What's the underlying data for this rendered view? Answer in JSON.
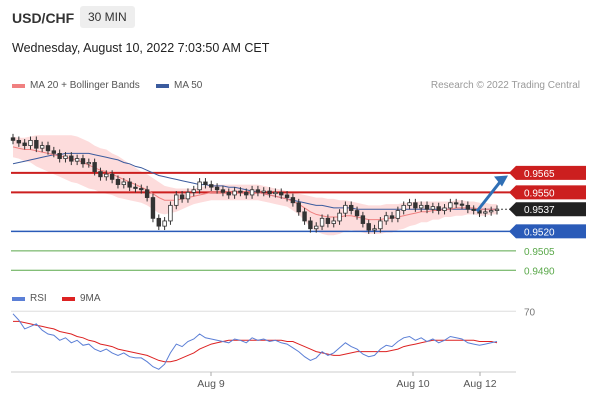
{
  "header": {
    "symbol": "USD/CHF",
    "timeframe": "30 MIN"
  },
  "date_text": "Wednesday, August 10, 2022 7:03:50 AM CET",
  "legend": {
    "ma20_label": "MA 20 + Bollinger Bands",
    "ma50_label": "MA 50",
    "credit": "Research © 2022 Trading Central",
    "rsi_label": "RSI",
    "ma9_label": "9MA"
  },
  "colors": {
    "resistance": "#cc1f1f",
    "support": "#2a5bb8",
    "target": "#5aa84a",
    "ma20": "#f08080",
    "ma50": "#3b5b9e",
    "band": "#fcd0d0",
    "up": "#333333",
    "down": "#333333",
    "arrow": "#2f6fb5",
    "rsi": "#5b7fd6",
    "ma9": "#dd2222"
  },
  "chart_data": [
    {
      "type": "candlestick",
      "ylim": [
        0.9481,
        0.9598
      ],
      "levels": [
        {
          "value": 0.9565,
          "label": "0.9565",
          "kind": "resistance"
        },
        {
          "value": 0.955,
          "label": "0.9550",
          "kind": "resistance"
        },
        {
          "value": 0.9537,
          "label": "0.9537",
          "kind": "current"
        },
        {
          "value": 0.952,
          "label": "0.9520",
          "kind": "support"
        },
        {
          "value": 0.9505,
          "label": "0.9505",
          "kind": "target"
        },
        {
          "value": 0.949,
          "label": "0.9490",
          "kind": "target"
        }
      ],
      "x_tick_labels": [
        "Aug 9",
        "Aug 10",
        "Aug 12"
      ],
      "close": [
        0.959,
        0.9588,
        0.9586,
        0.959,
        0.9584,
        0.9586,
        0.9582,
        0.958,
        0.9576,
        0.9578,
        0.9574,
        0.9576,
        0.9572,
        0.9573,
        0.9566,
        0.9562,
        0.9564,
        0.956,
        0.9556,
        0.9558,
        0.9554,
        0.9553,
        0.9552,
        0.9546,
        0.953,
        0.9524,
        0.9528,
        0.954,
        0.9548,
        0.9545,
        0.955,
        0.9552,
        0.9558,
        0.9556,
        0.9554,
        0.9552,
        0.955,
        0.9548,
        0.9551,
        0.955,
        0.9548,
        0.9552,
        0.955,
        0.9551,
        0.9549,
        0.955,
        0.9548,
        0.9546,
        0.9542,
        0.9535,
        0.9528,
        0.9522,
        0.9524,
        0.953,
        0.9526,
        0.9528,
        0.9534,
        0.954,
        0.9536,
        0.9532,
        0.9526,
        0.9521,
        0.9522,
        0.9528,
        0.9532,
        0.953,
        0.9536,
        0.954,
        0.9542,
        0.9538,
        0.954,
        0.9537,
        0.9539,
        0.9536,
        0.9538,
        0.9542,
        0.9541,
        0.954,
        0.9537,
        0.9536,
        0.9534,
        0.9535,
        0.9536,
        0.9537
      ],
      "ma20": [
        0.9585,
        0.9584,
        0.9583,
        0.9583,
        0.9582,
        0.9581,
        0.958,
        0.9579,
        0.9578,
        0.9577,
        0.9576,
        0.9575,
        0.9573,
        0.9571,
        0.9569,
        0.9567,
        0.9566,
        0.9564,
        0.9562,
        0.956,
        0.9558,
        0.9556,
        0.9554,
        0.9552,
        0.9549,
        0.9546,
        0.9544,
        0.9544,
        0.9544,
        0.9545,
        0.9546,
        0.9547,
        0.9548,
        0.9549,
        0.955,
        0.955,
        0.955,
        0.955,
        0.955,
        0.955,
        0.955,
        0.955,
        0.955,
        0.9549,
        0.9548,
        0.9547,
        0.9546,
        0.9545,
        0.9543,
        0.9541,
        0.9538,
        0.9535,
        0.9533,
        0.9532,
        0.9531,
        0.9531,
        0.9531,
        0.9532,
        0.9532,
        0.9531,
        0.953,
        0.9529,
        0.9529,
        0.9529,
        0.953,
        0.953,
        0.9531,
        0.9532,
        0.9533,
        0.9534,
        0.9535,
        0.9535,
        0.9536,
        0.9536,
        0.9537,
        0.9537,
        0.9538,
        0.9538,
        0.9538,
        0.9538,
        0.9537,
        0.9537,
        0.9537,
        0.9537
      ],
      "ma50": [
        0.9572,
        0.9573,
        0.9574,
        0.9575,
        0.9576,
        0.9577,
        0.9578,
        0.9579,
        0.9579,
        0.958,
        0.958,
        0.958,
        0.958,
        0.958,
        0.9579,
        0.9578,
        0.9577,
        0.9576,
        0.9575,
        0.9573,
        0.9572,
        0.957,
        0.9569,
        0.9567,
        0.9565,
        0.9563,
        0.9562,
        0.9561,
        0.956,
        0.9559,
        0.9558,
        0.9557,
        0.9556,
        0.9556,
        0.9555,
        0.9555,
        0.9555,
        0.9554,
        0.9554,
        0.9553,
        0.9552,
        0.9551,
        0.955,
        0.9549,
        0.9548,
        0.9547,
        0.9546,
        0.9545,
        0.9544,
        0.9543,
        0.9542,
        0.9541,
        0.954,
        0.954,
        0.9539,
        0.9538,
        0.9538,
        0.9538,
        0.9538,
        0.9537,
        0.9537,
        0.9537,
        0.9537,
        0.9537,
        0.9537,
        0.9537,
        0.9537,
        0.9537,
        0.9537,
        0.9537,
        0.9537,
        0.9537,
        0.9537,
        0.9537,
        0.9537,
        0.9537,
        0.9537,
        0.9537,
        0.9537,
        0.9537,
        0.9537,
        0.9537,
        0.9537,
        0.9537
      ],
      "bb_width": [
        0.0008,
        0.0008,
        0.0009,
        0.001,
        0.0012,
        0.0013,
        0.0014,
        0.0015,
        0.0016,
        0.0017,
        0.0018,
        0.0018,
        0.0018,
        0.0018,
        0.0017,
        0.0017,
        0.0017,
        0.0016,
        0.0016,
        0.0015,
        0.0014,
        0.0013,
        0.0012,
        0.0012,
        0.0012,
        0.0012,
        0.0011,
        0.001,
        0.0009,
        0.0008,
        0.0007,
        0.0006,
        0.0006,
        0.0006,
        0.0006,
        0.0006,
        0.0006,
        0.0006,
        0.0006,
        0.0006,
        0.0006,
        0.0006,
        0.0006,
        0.0006,
        0.0006,
        0.0006,
        0.0006,
        0.0006,
        0.0007,
        0.0008,
        0.001,
        0.0012,
        0.0013,
        0.0014,
        0.0014,
        0.0014,
        0.0013,
        0.0012,
        0.0011,
        0.0011,
        0.0011,
        0.0011,
        0.0011,
        0.0011,
        0.0011,
        0.0011,
        0.001,
        0.001,
        0.0009,
        0.0009,
        0.0008,
        0.0008,
        0.0007,
        0.0007,
        0.0006,
        0.0006,
        0.0006,
        0.0006,
        0.0005,
        0.0005,
        0.0005,
        0.0005,
        0.0004,
        0.0004
      ],
      "projection_arrow": {
        "from": 0.9537,
        "to": 0.9563
      }
    },
    {
      "type": "line",
      "series": [
        {
          "name": "RSI",
          "values": [
            68,
            63,
            56,
            58,
            60,
            55,
            52,
            51,
            47,
            49,
            45,
            47,
            43,
            44,
            40,
            38,
            40,
            37,
            35,
            37,
            34,
            33,
            33,
            30,
            26,
            24,
            28,
            37,
            44,
            42,
            46,
            48,
            52,
            49,
            48,
            47,
            46,
            45,
            48,
            47,
            45,
            49,
            47,
            48,
            46,
            47,
            45,
            44,
            41,
            38,
            34,
            31,
            33,
            38,
            35,
            37,
            41,
            45,
            42,
            40,
            36,
            34,
            35,
            40,
            43,
            42,
            46,
            49,
            50,
            47,
            49,
            46,
            48,
            45,
            47,
            50,
            49,
            48,
            45,
            44,
            43,
            44,
            45,
            46
          ]
        },
        {
          "name": "9MA",
          "values": [
            62,
            62,
            61,
            60,
            59,
            58,
            57,
            56,
            54,
            53,
            52,
            50,
            49,
            47,
            46,
            44,
            43,
            42,
            40,
            39,
            38,
            37,
            36,
            35,
            33,
            31,
            30,
            30,
            31,
            33,
            35,
            37,
            40,
            42,
            44,
            45,
            46,
            47,
            47,
            47,
            47,
            47,
            47,
            47,
            47,
            47,
            47,
            46,
            46,
            44,
            42,
            40,
            38,
            37,
            36,
            35,
            35,
            36,
            37,
            38,
            38,
            38,
            38,
            38,
            38,
            39,
            40,
            42,
            43,
            44,
            45,
            46,
            47,
            47,
            47,
            47,
            47,
            47,
            47,
            47,
            46,
            46,
            46,
            45
          ]
        }
      ],
      "ylim": [
        25,
        75
      ],
      "y_tick_labels": [
        "70"
      ],
      "y_ticks": [
        70
      ]
    }
  ]
}
